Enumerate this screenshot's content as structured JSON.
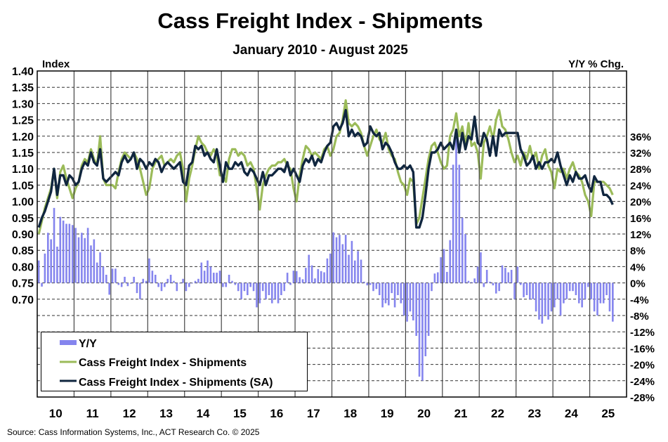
{
  "chart_data": {
    "type": "combo",
    "title": "Cass Freight Index - Shipments",
    "subtitle": "January 2010 - August 2025",
    "y_left_label": "Index",
    "y_right_label": "Y/Y % Chg.",
    "y_left_range": [
      0.7,
      1.4
    ],
    "y_left_ticks": [
      "1.40",
      "1.35",
      "1.30",
      "1.25",
      "1.20",
      "1.15",
      "1.10",
      "1.05",
      "1.00",
      "0.95",
      "0.90",
      "0.85",
      "0.80",
      "0.75",
      "0.70"
    ],
    "y_right_range": [
      -28,
      36
    ],
    "y_right_ticks": [
      "36%",
      "32%",
      "28%",
      "24%",
      "20%",
      "16%",
      "12%",
      "8%",
      "4%",
      "0%",
      "-4%",
      "-8%",
      "-12%",
      "-16%",
      "-20%",
      "-24%",
      "-28%"
    ],
    "x_ticks": [
      "10",
      "11",
      "12",
      "13",
      "14",
      "15",
      "16",
      "17",
      "18",
      "19",
      "20",
      "21",
      "22",
      "23",
      "24",
      "25"
    ],
    "grid": true,
    "legend_position": "bottom-left",
    "colors": {
      "yy": "#8585ee",
      "nsa": "#9bbb59",
      "sa": "#10263f"
    },
    "series": [
      {
        "name": "Y/Y",
        "type": "bar",
        "axis": "right",
        "values": [
          5.5,
          -0.9,
          7.2,
          12.3,
          10.7,
          18.4,
          8.9,
          16.2,
          15.3,
          14.5,
          14.5,
          14.2,
          13.5,
          11.2,
          12.3,
          11,
          13.5,
          9.2,
          10.7,
          5,
          7.5,
          4,
          2,
          -2.9,
          3.5,
          3.5,
          -0.5,
          -1,
          1.5,
          -0.8,
          -0.2,
          1.5,
          -2.5,
          -4,
          1,
          0.5,
          6,
          3,
          2,
          -1,
          -2,
          -1,
          1,
          2,
          0.5,
          -2,
          0,
          1,
          -2,
          -1,
          0,
          0.5,
          1,
          5,
          3,
          5.5,
          4,
          2.5,
          2.5,
          3,
          -1,
          -1,
          2,
          0.5,
          -0.5,
          -2,
          -4,
          -2,
          -3,
          -1,
          -2,
          -6,
          -5,
          -2,
          -4,
          -3,
          -5,
          -4,
          -5,
          -3,
          -2,
          2.5,
          -0.5,
          3,
          2.9,
          1.4,
          0.9,
          3.7,
          6.9,
          4.3,
          1.1,
          3.4,
          2.9,
          2.6,
          6,
          7.2,
          12.4,
          11.2,
          11.8,
          9.5,
          11.8,
          6.9,
          10.3,
          5.5,
          7.8,
          5.7,
          0.3,
          -0.6,
          -0.5,
          -2,
          -1.5,
          -3,
          -6,
          -5,
          -5.5,
          -2.5,
          -6,
          -3,
          -5,
          -8,
          -9.5,
          -7,
          -9.2,
          -13,
          -23,
          -24,
          -18,
          -13,
          -2,
          2.3,
          2.6,
          6.3,
          8.3,
          2.7,
          10.5,
          29,
          36,
          29,
          16,
          12,
          0.5,
          0.2,
          1.1,
          4,
          7.5,
          -1,
          3.2,
          0.3,
          -0.6,
          -2.6,
          -2,
          4.3,
          3.7,
          2.6,
          3.2,
          -4,
          4,
          -0.5,
          -3.5,
          -3,
          -4,
          -4,
          -7,
          -9,
          -10,
          -8,
          -9,
          -7,
          -6,
          -4,
          -8,
          -5,
          -4,
          -2,
          -2,
          -3,
          -5,
          -6,
          -4,
          -1,
          -4,
          -7,
          -8,
          -5,
          -5,
          -3,
          -7,
          -9.5
        ]
      },
      {
        "name": "Cass Freight Index - Shipments",
        "type": "line",
        "axis": "left",
        "values": [
          0.9,
          0.94,
          0.98,
          1.01,
          1.04,
          1.1,
          1.01,
          1.09,
          1.11,
          1.07,
          1.04,
          1.01,
          1.04,
          1.06,
          1.11,
          1.13,
          1.12,
          1.16,
          1.13,
          1.11,
          1.2,
          1.07,
          1.05,
          1.05,
          1.05,
          1.04,
          1.09,
          1.13,
          1.15,
          1.14,
          1.13,
          1.15,
          1.13,
          1.1,
          1.06,
          1.02,
          1.04,
          1.1,
          1.12,
          1.13,
          1.14,
          1.11,
          1.12,
          1.13,
          1.12,
          1.14,
          1.15,
          1.1,
          1.0,
          1.07,
          1.11,
          1.16,
          1.2,
          1.18,
          1.17,
          1.15,
          1.14,
          1.16,
          1.14,
          1.08,
          1.08,
          1.06,
          1.13,
          1.16,
          1.16,
          1.14,
          1.15,
          1.14,
          1.11,
          1.12,
          1.1,
          1.04,
          0.975,
          1.05,
          1.08,
          1.1,
          1.11,
          1.11,
          1.12,
          1.12,
          1.13,
          1.11,
          1.1,
          1.04,
          1.0,
          1.08,
          1.13,
          1.17,
          1.16,
          1.14,
          1.15,
          1.14,
          1.13,
          1.16,
          1.17,
          1.14,
          1.16,
          1.2,
          1.21,
          1.25,
          1.31,
          1.24,
          1.23,
          1.24,
          1.23,
          1.21,
          1.17,
          1.14,
          1.17,
          1.2,
          1.22,
          1.19,
          1.18,
          1.21,
          1.16,
          1.14,
          1.13,
          1.09,
          1.06,
          1.05,
          1.02,
          1.07,
          1.06,
          0.93,
          0.95,
          1.01,
          1.07,
          1.13,
          1.17,
          1.18,
          1.15,
          1.12,
          1.1,
          1.11,
          1.2,
          1.22,
          1.27,
          1.2,
          1.23,
          1.17,
          1.24,
          1.17,
          1.18,
          1.15,
          1.07,
          1.18,
          1.2,
          1.23,
          1.19,
          1.25,
          1.28,
          1.23,
          1.22,
          1.19,
          1.15,
          1.12,
          1.14,
          1.11,
          1.15,
          1.13,
          1.17,
          1.13,
          1.15,
          1.1,
          1.14,
          1.16,
          1.11,
          1.09,
          1.04,
          1.1,
          1.09,
          1.1,
          1.07,
          1.1,
          1.12,
          1.09,
          1.08,
          1.06,
          1.02,
          1.0,
          0.955,
          1.06,
          1.06,
          1.06,
          1.06,
          1.05,
          1.04,
          1.02
        ]
      },
      {
        "name": "Cass Freight Index - Shipments (SA)",
        "type": "line",
        "axis": "left",
        "values": [
          0.92,
          0.95,
          0.97,
          1.0,
          1.03,
          1.1,
          1.02,
          1.08,
          1.08,
          1.05,
          1.08,
          1.07,
          1.05,
          1.06,
          1.1,
          1.12,
          1.11,
          1.15,
          1.12,
          1.11,
          1.16,
          1.07,
          1.06,
          1.07,
          1.08,
          1.09,
          1.08,
          1.12,
          1.14,
          1.12,
          1.13,
          1.15,
          1.1,
          1.13,
          1.12,
          1.1,
          1.12,
          1.11,
          1.13,
          1.12,
          1.09,
          1.11,
          1.12,
          1.11,
          1.1,
          1.11,
          1.12,
          1.06,
          1.05,
          1.11,
          1.12,
          1.17,
          1.16,
          1.17,
          1.14,
          1.15,
          1.13,
          1.12,
          1.16,
          1.11,
          1.06,
          1.12,
          1.1,
          1.1,
          1.12,
          1.11,
          1.12,
          1.09,
          1.08,
          1.1,
          1.09,
          1.07,
          1.05,
          1.09,
          1.05,
          1.08,
          1.08,
          1.09,
          1.1,
          1.1,
          1.09,
          1.12,
          1.08,
          1.1,
          1.08,
          1.06,
          1.11,
          1.13,
          1.12,
          1.14,
          1.11,
          1.13,
          1.12,
          1.15,
          1.17,
          1.18,
          1.23,
          1.24,
          1.22,
          1.24,
          1.28,
          1.2,
          1.22,
          1.2,
          1.21,
          1.2,
          1.17,
          1.18,
          1.23,
          1.21,
          1.2,
          1.21,
          1.16,
          1.18,
          1.17,
          1.15,
          1.12,
          1.1,
          1.1,
          1.11,
          1.1,
          1.11,
          1.09,
          0.92,
          0.92,
          0.95,
          1.02,
          1.1,
          1.15,
          1.15,
          1.16,
          1.18,
          1.16,
          1.17,
          1.18,
          1.16,
          1.22,
          1.15,
          1.21,
          1.16,
          1.2,
          1.19,
          1.26,
          1.18,
          1.17,
          1.21,
          1.19,
          1.14,
          1.2,
          1.14,
          1.22,
          1.2,
          1.21,
          1.21,
          1.21,
          1.21,
          1.21,
          1.16,
          1.14,
          1.11,
          1.12,
          1.14,
          1.1,
          1.12,
          1.1,
          1.12,
          1.12,
          1.13,
          1.12,
          1.15,
          1.11,
          1.08,
          1.05,
          1.08,
          1.06,
          1.09,
          1.07,
          1.07,
          1.08,
          1.05,
          1.03,
          1.077,
          1.06,
          1.06,
          1.02,
          1.02,
          1.01,
          0.99
        ]
      }
    ],
    "legend": [
      "Y/Y",
      "Cass Freight Index - Shipments",
      "Cass Freight Index - Shipments (SA)"
    ],
    "source": "Source:  Cass Information  Systems, Inc., ACT Research Co. © 2025"
  }
}
